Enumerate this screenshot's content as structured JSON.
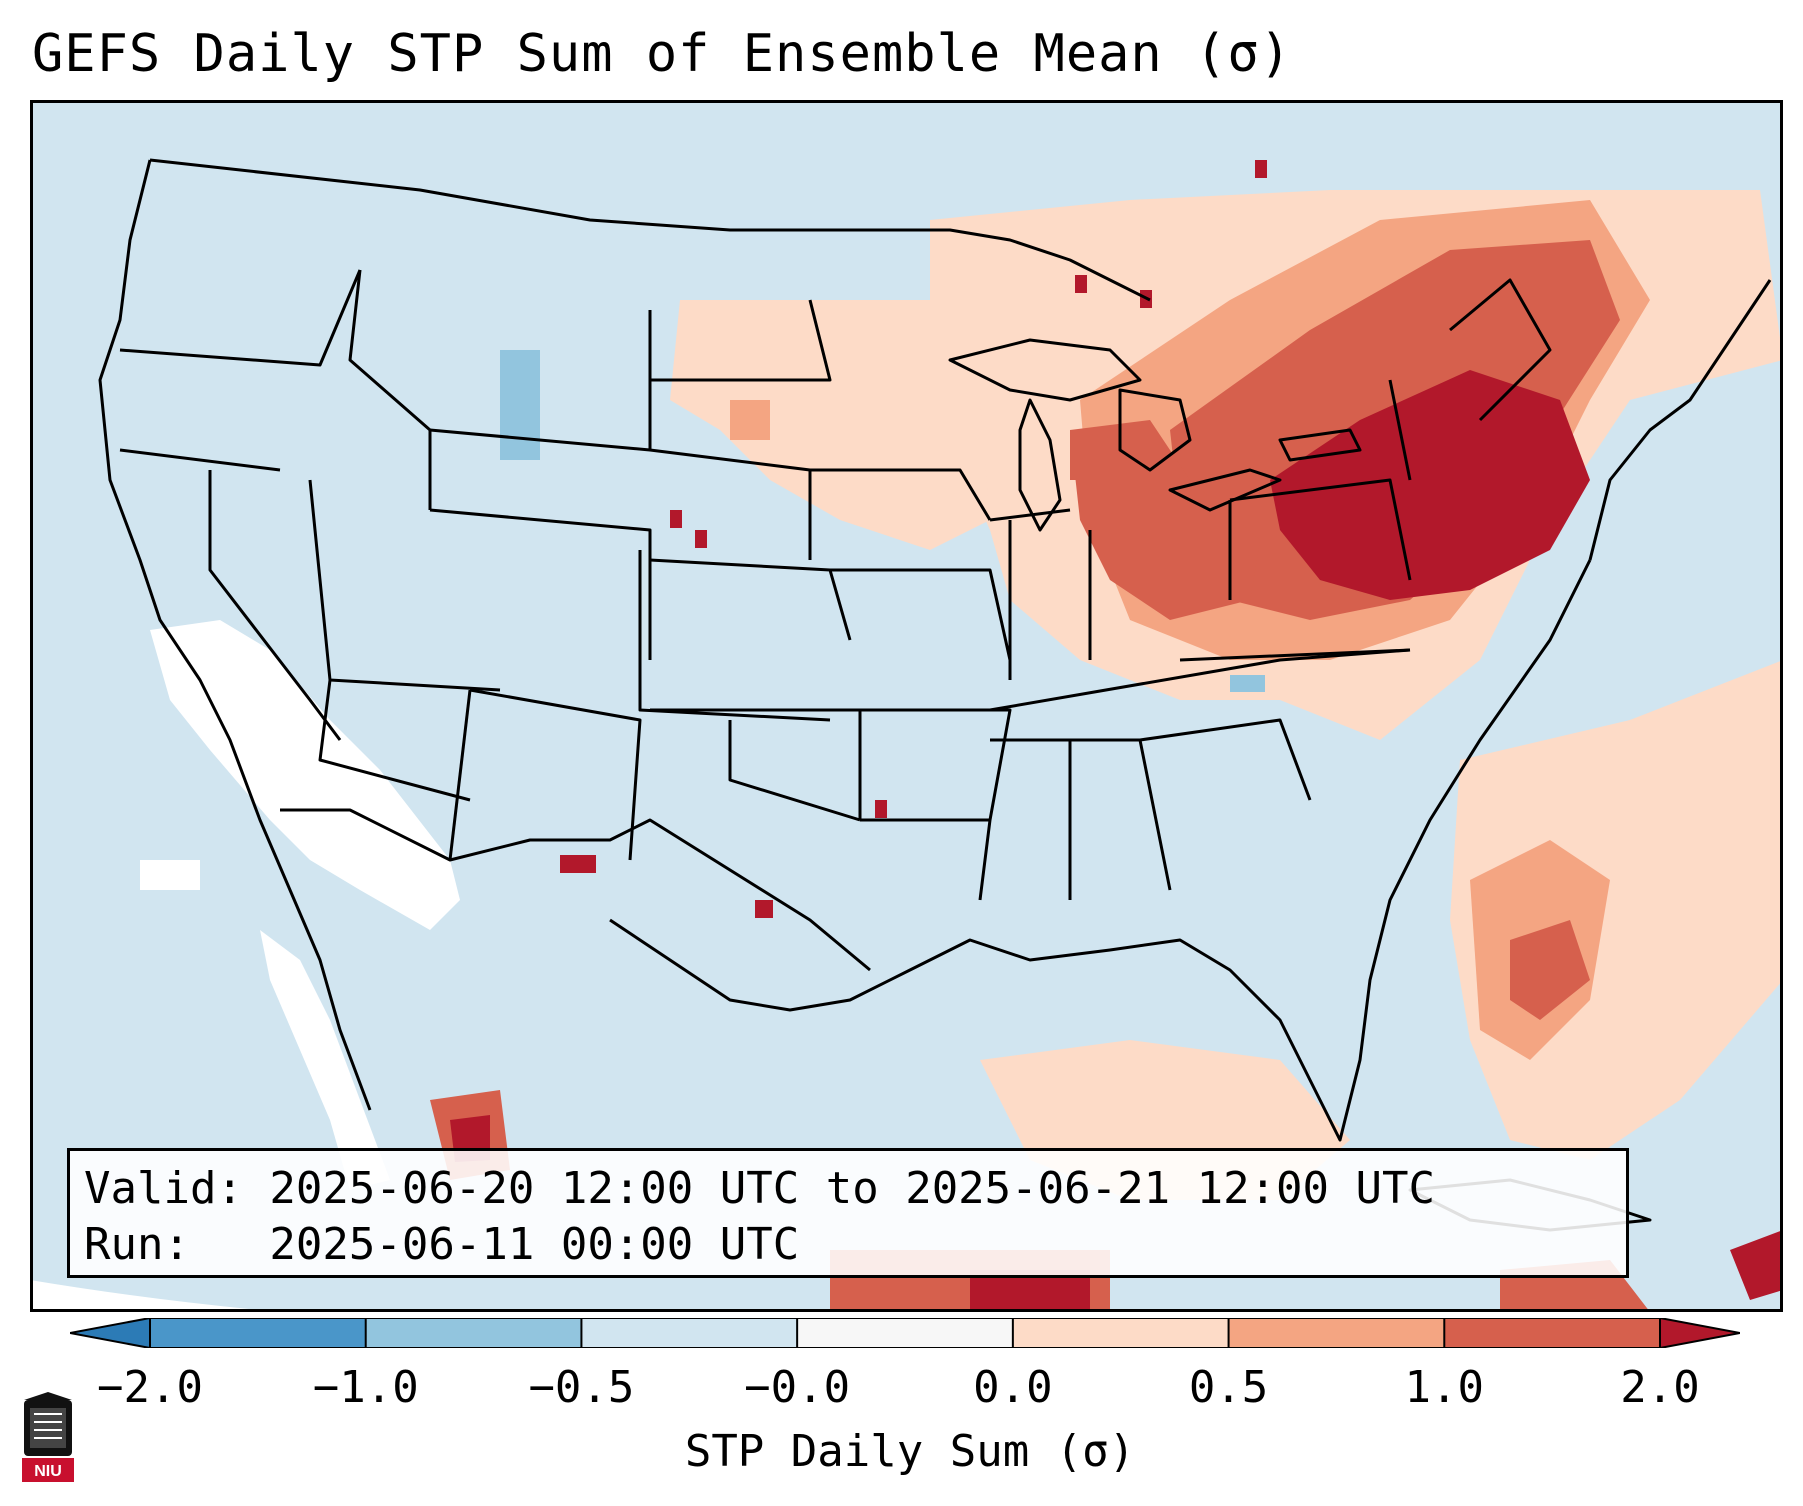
{
  "title": "GEFS Daily STP Sum of Ensemble Mean (σ)",
  "info": {
    "valid_line": "Valid: 2025-06-20 12:00 UTC to 2025-06-21 12:00 UTC",
    "run_line": "Run:   2025-06-11 00:00 UTC"
  },
  "colorbar": {
    "label": "STP Daily Sum (σ)",
    "ticks": [
      "−2.0",
      "−1.0",
      "−0.5",
      "−0.0",
      "0.0",
      "0.5",
      "1.0",
      "2.0"
    ],
    "colors": [
      "#2c7bb6",
      "#4a96c9",
      "#92c5de",
      "#d1e5f0",
      "#f7f7f7",
      "#fddbc7",
      "#f4a582",
      "#d6604d",
      "#b2182b"
    ]
  },
  "map_colors": {
    "ocean": "#d1e5f0",
    "land_base": "#d1e5f0",
    "neutral": "#ffffff",
    "light_red": "#fddbc7",
    "mid_red": "#f4a582",
    "red": "#d6604d",
    "dark_red": "#b2182b",
    "light_blue": "#92c5de"
  },
  "logo": {
    "text": "NIU",
    "icon": "niu-logo-icon"
  }
}
